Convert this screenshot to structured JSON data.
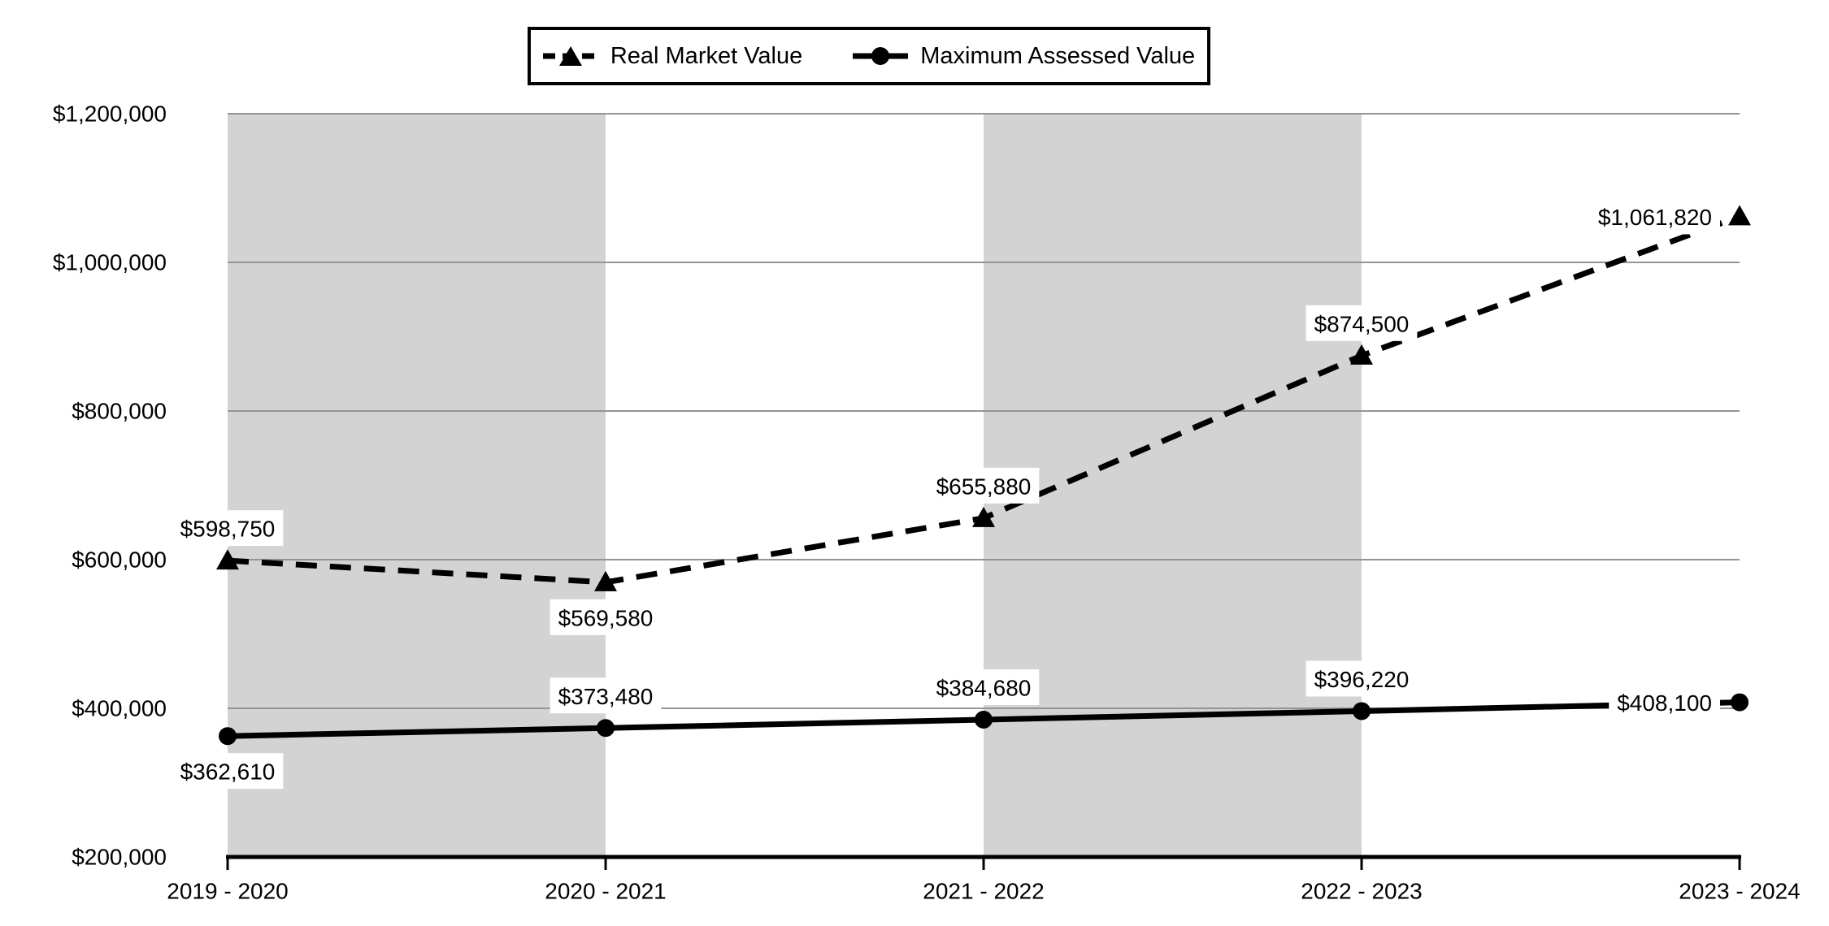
{
  "legend": {
    "items": [
      {
        "label": "Real Market Value",
        "marker": "dashed-line-triangle"
      },
      {
        "label": "Maximum Assessed Value",
        "marker": "solid-line-circle"
      }
    ]
  },
  "chart_data": {
    "type": "line",
    "categories": [
      "2019 - 2020",
      "2020 - 2021",
      "2021 - 2022",
      "2022 - 2023",
      "2023 - 2024"
    ],
    "series": [
      {
        "name": "Real Market Value",
        "style": "dashed",
        "marker": "triangle",
        "values": [
          598750,
          569580,
          655880,
          874500,
          1061820
        ],
        "labels": [
          "$598,750",
          "$569,580",
          "$655,880",
          "$874,500",
          "$1,061,820"
        ]
      },
      {
        "name": "Maximum Assessed Value",
        "style": "solid",
        "marker": "circle",
        "values": [
          362610,
          373480,
          384680,
          396220,
          408100
        ],
        "labels": [
          "$362,610",
          "$373,480",
          "$384,680",
          "$396,220",
          "$408,100"
        ]
      }
    ],
    "y_axis": {
      "min": 200000,
      "max": 1200000,
      "step": 200000,
      "tick_labels": [
        "$200,000",
        "$400,000",
        "$600,000",
        "$800,000",
        "$1,000,000",
        "$1,200,000"
      ]
    },
    "grid": true,
    "legend_position": "top",
    "plot_bands": {
      "intervals": [
        0,
        2
      ]
    },
    "colors": {
      "series": "#000000",
      "gridline": "#949494",
      "band": "#d3d3d3",
      "background": "#ffffff",
      "label_background": "#ffffff",
      "axis": "#000000"
    }
  }
}
